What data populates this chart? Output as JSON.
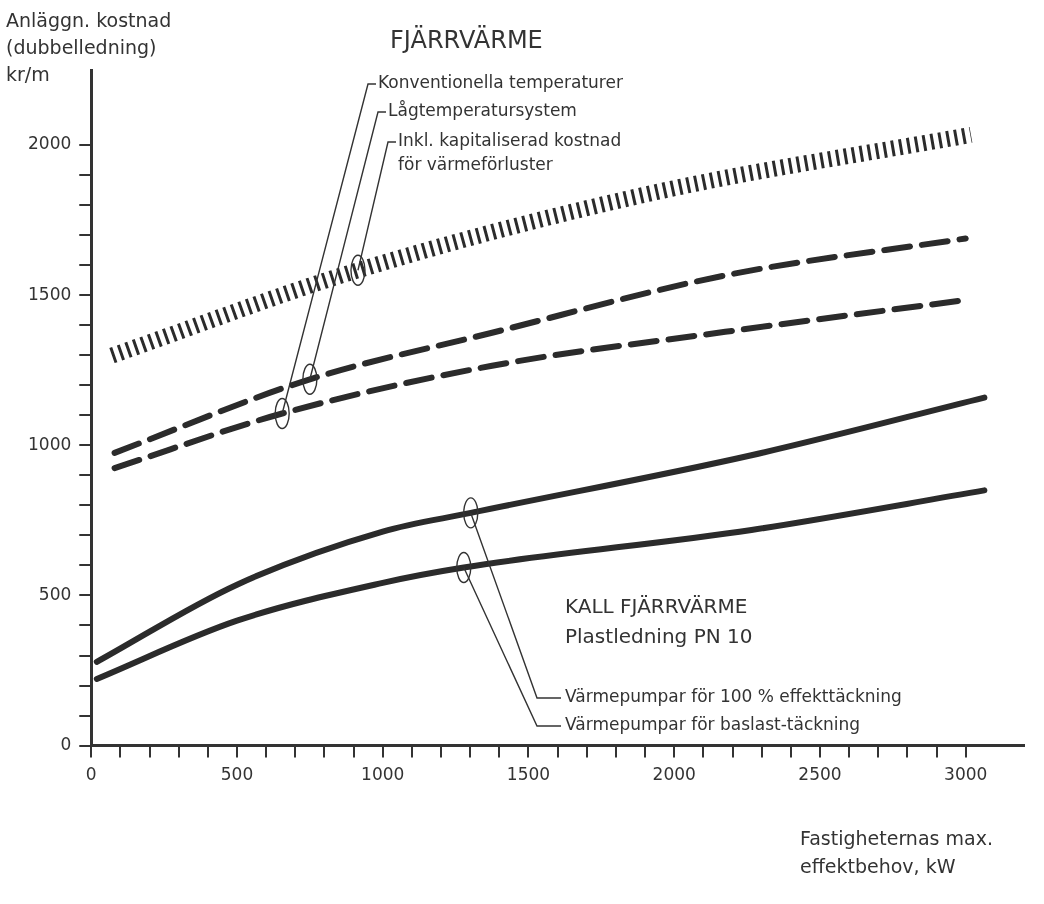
{
  "chart_data": {
    "type": "line",
    "title": "FJÄRRVÄRME",
    "xlabel": "Fastigheternas max.\neffektbehov, kW",
    "ylabel": "Anläggn. kostnad\n(dubbelledning)\nkr/m",
    "annotations": [
      "KALL FJÄRRVÄRME",
      "Plastledning PN 10"
    ],
    "xlim": [
      0,
      3200
    ],
    "ylim": [
      0,
      2250
    ],
    "xticks": [
      0,
      {
        "value": 100,
        "label": null
      },
      {
        "value": 200,
        "label": null
      },
      {
        "value": 300,
        "label": null
      },
      {
        "value": 400,
        "label": null
      },
      500,
      {
        "value": 600,
        "label": null
      },
      {
        "value": 700,
        "label": null
      },
      {
        "value": 800,
        "label": null
      },
      {
        "value": 900,
        "label": null
      },
      1000,
      {
        "value": 1100,
        "label": null
      },
      {
        "value": 1200,
        "label": null
      },
      {
        "value": 1300,
        "label": null
      },
      {
        "value": 1400,
        "label": null
      },
      1500,
      {
        "value": 1600,
        "label": null
      },
      {
        "value": 1700,
        "label": null
      },
      {
        "value": 1800,
        "label": null
      },
      {
        "value": 1900,
        "label": null
      },
      2000,
      {
        "value": 2100,
        "label": null
      },
      {
        "value": 2200,
        "label": null
      },
      {
        "value": 2300,
        "label": null
      },
      {
        "value": 2400,
        "label": null
      },
      2500,
      {
        "value": 2600,
        "label": null
      },
      {
        "value": 2700,
        "label": null
      },
      {
        "value": 2800,
        "label": null
      },
      {
        "value": 2900,
        "label": null
      },
      3000
    ],
    "yticks": [
      0,
      {
        "value": 100,
        "label": null
      },
      {
        "value": 200,
        "label": null
      },
      {
        "value": 300,
        "label": null
      },
      {
        "value": 400,
        "label": null
      },
      500,
      {
        "value": 600,
        "label": null
      },
      {
        "value": 700,
        "label": null
      },
      {
        "value": 800,
        "label": null
      },
      {
        "value": 900,
        "label": null
      },
      1000,
      {
        "value": 1100,
        "label": null
      },
      {
        "value": 1200,
        "label": null
      },
      {
        "value": 1300,
        "label": null
      },
      {
        "value": 1400,
        "label": null
      },
      1500,
      {
        "value": 1600,
        "label": null
      },
      {
        "value": 1700,
        "label": null
      },
      {
        "value": 1800,
        "label": null
      },
      {
        "value": 1900,
        "label": null
      },
      2000
    ],
    "grid": false,
    "legend": false,
    "marker": "none",
    "series": [
      {
        "name": "Konventionella temperaturer",
        "color": "#2b2b2b",
        "line_style": "dashed",
        "x": [
          80,
          655,
          1375,
          2175,
          3000
        ],
        "values": [
          924,
          1106,
          1265,
          1378,
          1484
        ]
      },
      {
        "name": "Lågtemperatursystem",
        "color": "#2b2b2b",
        "line_style": "dashed",
        "x": [
          80,
          750,
          1375,
          2175,
          3000
        ],
        "values": [
          975,
          1220,
          1375,
          1566,
          1689
        ]
      },
      {
        "name": "Inkl. kapitaliserad kostnad\nför värmeförluster",
        "color": "#2b2b2b",
        "line_style": "dotted",
        "x": [
          71,
          915,
          1951,
          3018
        ],
        "values": [
          1299,
          1583,
          1846,
          2034
        ]
      },
      {
        "name": "Värmepumpar för 100 % effekttäckning",
        "color": "#2b2b2b",
        "line_style": "solid",
        "x": [
          19,
          500,
          1000,
          1302,
          2265,
          3064
        ],
        "values": [
          279,
          536,
          713,
          775,
          967,
          1159
        ]
      },
      {
        "name": "Värmepumpar för baslast-täckning",
        "color": "#2b2b2b",
        "line_style": "solid",
        "x": [
          19,
          500,
          1000,
          1278,
          2265,
          3064
        ],
        "values": [
          222,
          416,
          542,
          593,
          718,
          850
        ]
      }
    ]
  }
}
